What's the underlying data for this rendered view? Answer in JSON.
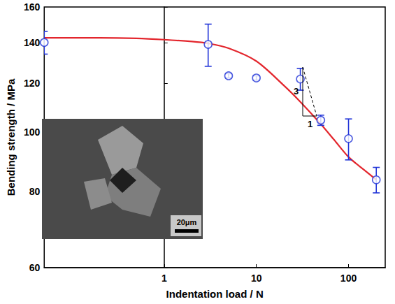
{
  "chart_data": {
    "type": "scatter",
    "x_label": "Indentation load / N",
    "y_label": "Bending strength / MPa",
    "log": true,
    "grid": false,
    "xlim": [
      0.05,
      250
    ],
    "ylim": [
      60,
      160
    ],
    "xticks": [
      1,
      10,
      100
    ],
    "yticks": [
      60,
      80,
      100,
      120,
      140,
      160
    ],
    "series": [
      {
        "type": "scatter",
        "color": "#2235d8",
        "marker": "circle",
        "x": [
          0.05,
          3,
          5,
          10,
          30,
          50,
          100,
          200
        ],
        "values": [
          140,
          139,
          123.5,
          122.5,
          122,
          104.5,
          97.5,
          83.5
        ],
        "errors": [
          6,
          11,
          1,
          1,
          5,
          2,
          7.5,
          4
        ]
      },
      {
        "type": "line",
        "color": "#e3262d",
        "line_style": "solid",
        "x": [
          0.05,
          0.2,
          0.5,
          1,
          2,
          3,
          5,
          10,
          20,
          30,
          50,
          70,
          100,
          150,
          200
        ],
        "values": [
          142.5,
          142.5,
          142.2,
          141.5,
          140.5,
          139.5,
          137,
          130.5,
          119,
          112,
          103,
          97,
          91,
          86.5,
          83.5
        ]
      }
    ],
    "annotations": [
      "3",
      "1",
      "20μm"
    ]
  }
}
